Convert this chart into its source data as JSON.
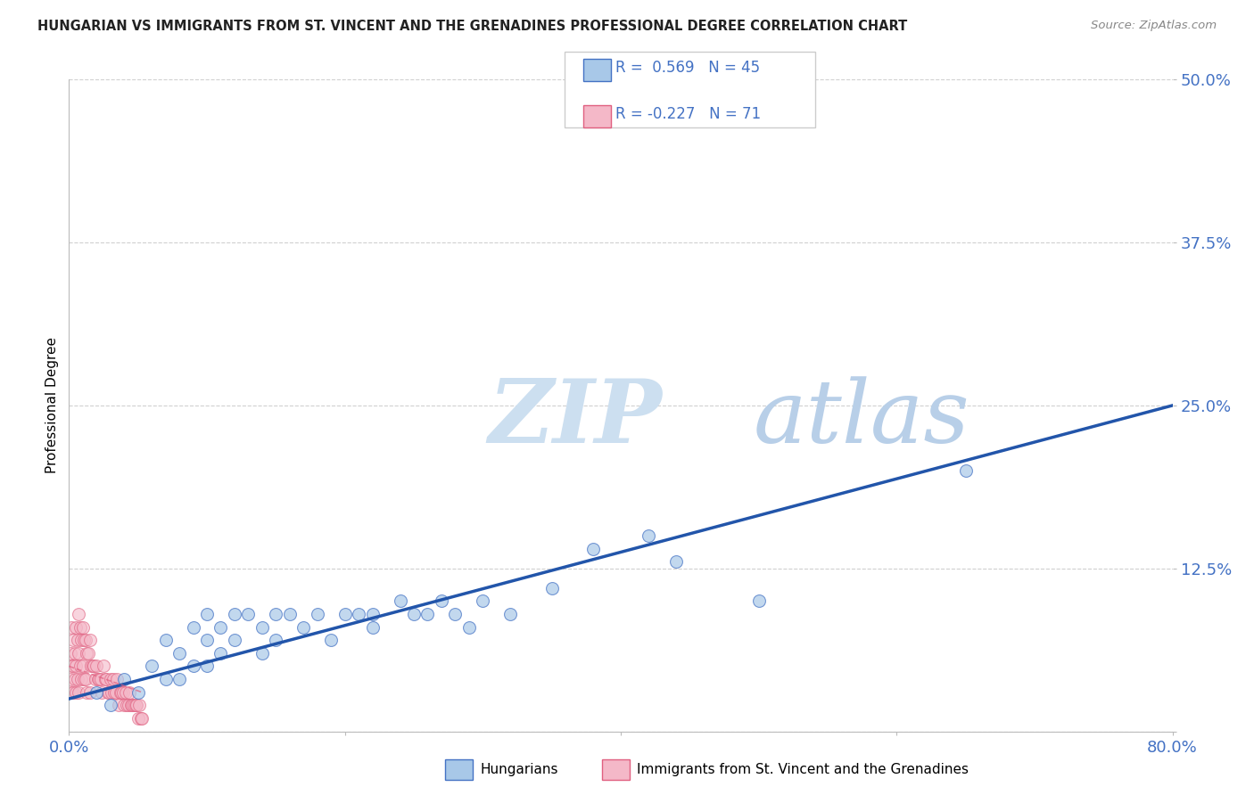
{
  "title": "HUNGARIAN VS IMMIGRANTS FROM ST. VINCENT AND THE GRENADINES PROFESSIONAL DEGREE CORRELATION CHART",
  "source": "Source: ZipAtlas.com",
  "ylabel": "Professional Degree",
  "xlim": [
    0.0,
    0.8
  ],
  "ylim": [
    0.0,
    0.5
  ],
  "ytick_positions": [
    0.0,
    0.125,
    0.25,
    0.375,
    0.5
  ],
  "ytick_labels": [
    "",
    "12.5%",
    "25.0%",
    "37.5%",
    "50.0%"
  ],
  "xtick_positions": [
    0.0,
    0.2,
    0.4,
    0.6,
    0.8
  ],
  "xtick_labels": [
    "0.0%",
    "",
    "",
    "",
    "80.0%"
  ],
  "background_color": "#ffffff",
  "grid_color": "#d0d0d0",
  "blue_fill": "#a8c8e8",
  "blue_edge": "#4472c4",
  "pink_fill": "#f4b8c8",
  "pink_edge": "#e06080",
  "blue_line_color": "#2255aa",
  "pink_line_color": "#cc4488",
  "watermark_zip_color": "#c8ddf0",
  "watermark_atlas_color": "#b0c8e8",
  "legend_R_blue": "0.569",
  "legend_N_blue": "45",
  "legend_R_pink": "-0.227",
  "legend_N_pink": "71",
  "blue_scatter_x": [
    0.02,
    0.03,
    0.04,
    0.05,
    0.06,
    0.07,
    0.07,
    0.08,
    0.08,
    0.09,
    0.09,
    0.1,
    0.1,
    0.1,
    0.11,
    0.11,
    0.12,
    0.12,
    0.13,
    0.14,
    0.14,
    0.15,
    0.15,
    0.16,
    0.17,
    0.18,
    0.19,
    0.2,
    0.21,
    0.22,
    0.22,
    0.24,
    0.25,
    0.26,
    0.27,
    0.28,
    0.29,
    0.3,
    0.32,
    0.35,
    0.38,
    0.42,
    0.44,
    0.5,
    0.65
  ],
  "blue_scatter_y": [
    0.03,
    0.02,
    0.04,
    0.03,
    0.05,
    0.04,
    0.07,
    0.06,
    0.04,
    0.08,
    0.05,
    0.07,
    0.05,
    0.09,
    0.08,
    0.06,
    0.09,
    0.07,
    0.09,
    0.08,
    0.06,
    0.09,
    0.07,
    0.09,
    0.08,
    0.09,
    0.07,
    0.09,
    0.09,
    0.08,
    0.09,
    0.1,
    0.09,
    0.09,
    0.1,
    0.09,
    0.08,
    0.1,
    0.09,
    0.11,
    0.14,
    0.15,
    0.13,
    0.1,
    0.2
  ],
  "pink_scatter_x": [
    0.001,
    0.001,
    0.002,
    0.002,
    0.002,
    0.003,
    0.003,
    0.003,
    0.004,
    0.004,
    0.005,
    0.005,
    0.005,
    0.006,
    0.006,
    0.007,
    0.007,
    0.007,
    0.008,
    0.008,
    0.009,
    0.009,
    0.01,
    0.01,
    0.011,
    0.011,
    0.012,
    0.012,
    0.013,
    0.013,
    0.014,
    0.015,
    0.015,
    0.016,
    0.017,
    0.018,
    0.019,
    0.02,
    0.021,
    0.022,
    0.023,
    0.024,
    0.025,
    0.026,
    0.027,
    0.028,
    0.029,
    0.03,
    0.031,
    0.032,
    0.033,
    0.034,
    0.035,
    0.036,
    0.037,
    0.038,
    0.039,
    0.04,
    0.041,
    0.042,
    0.043,
    0.044,
    0.045,
    0.046,
    0.047,
    0.048,
    0.049,
    0.05,
    0.051,
    0.052,
    0.053
  ],
  "pink_scatter_y": [
    0.06,
    0.04,
    0.08,
    0.05,
    0.03,
    0.07,
    0.05,
    0.03,
    0.06,
    0.04,
    0.08,
    0.05,
    0.03,
    0.07,
    0.04,
    0.09,
    0.06,
    0.03,
    0.08,
    0.05,
    0.07,
    0.04,
    0.08,
    0.05,
    0.07,
    0.04,
    0.07,
    0.04,
    0.06,
    0.03,
    0.06,
    0.07,
    0.03,
    0.05,
    0.05,
    0.05,
    0.04,
    0.05,
    0.04,
    0.04,
    0.04,
    0.03,
    0.05,
    0.04,
    0.04,
    0.03,
    0.03,
    0.04,
    0.03,
    0.04,
    0.03,
    0.03,
    0.04,
    0.02,
    0.03,
    0.03,
    0.03,
    0.02,
    0.03,
    0.02,
    0.02,
    0.03,
    0.02,
    0.02,
    0.02,
    0.02,
    0.02,
    0.01,
    0.02,
    0.01,
    0.01
  ],
  "blue_line_x": [
    0.0,
    0.8
  ],
  "blue_line_y": [
    0.025,
    0.25
  ],
  "pink_line_x": [
    0.0,
    0.053
  ],
  "pink_line_y": [
    0.05,
    0.03
  ]
}
